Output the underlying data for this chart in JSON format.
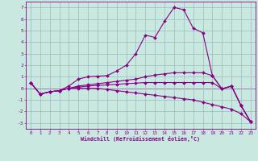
{
  "title": "",
  "xlabel": "Windchill (Refroidissement éolien,°C)",
  "xlim": [
    -0.5,
    23.5
  ],
  "ylim": [
    -3.5,
    7.5
  ],
  "xticks": [
    0,
    1,
    2,
    3,
    4,
    5,
    6,
    7,
    8,
    9,
    10,
    11,
    12,
    13,
    14,
    15,
    16,
    17,
    18,
    19,
    20,
    21,
    22,
    23
  ],
  "yticks": [
    -3,
    -2,
    -1,
    0,
    1,
    2,
    3,
    4,
    5,
    6,
    7
  ],
  "background_color": "#c8e8e0",
  "line_color": "#880088",
  "grid_color": "#99bbbb",
  "lines": [
    [
      0.5,
      -0.5,
      -0.3,
      -0.2,
      0.2,
      0.8,
      1.0,
      1.05,
      1.1,
      1.5,
      2.0,
      3.0,
      4.6,
      4.4,
      5.8,
      7.0,
      6.8,
      5.2,
      4.8,
      1.1,
      -0.05,
      0.2,
      -1.5,
      -2.9
    ],
    [
      0.5,
      -0.5,
      -0.3,
      -0.2,
      0.0,
      0.2,
      0.3,
      0.4,
      0.5,
      0.6,
      0.7,
      0.8,
      1.0,
      1.15,
      1.25,
      1.35,
      1.35,
      1.35,
      1.35,
      1.1,
      -0.05,
      0.2,
      -1.5,
      -2.9
    ],
    [
      0.5,
      -0.5,
      -0.3,
      -0.2,
      0.0,
      0.1,
      0.2,
      0.25,
      0.3,
      0.35,
      0.4,
      0.45,
      0.5,
      0.5,
      0.5,
      0.5,
      0.5,
      0.5,
      0.5,
      0.5,
      -0.05,
      0.2,
      -1.5,
      -2.9
    ],
    [
      0.5,
      -0.5,
      -0.3,
      -0.2,
      0.0,
      0.0,
      0.0,
      0.0,
      -0.1,
      -0.2,
      -0.3,
      -0.4,
      -0.5,
      -0.6,
      -0.7,
      -0.8,
      -0.9,
      -1.0,
      -1.2,
      -1.4,
      -1.6,
      -1.8,
      -2.2,
      -2.9
    ]
  ]
}
